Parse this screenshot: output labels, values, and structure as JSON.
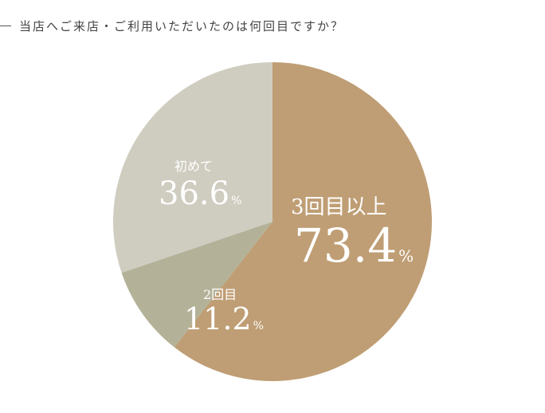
{
  "chart_data": {
    "type": "pie",
    "title": "当店へご来店・ご利用いただいたのは何回目ですか？",
    "slices": [
      {
        "label": "3回目以上",
        "value": 73.4,
        "display": "73.4",
        "color": "#bf9e75"
      },
      {
        "label": "2回目",
        "value": 11.2,
        "display": "11.2",
        "color": "#b3b298"
      },
      {
        "label": "初めて",
        "value": 36.6,
        "display": "36.6",
        "color": "#cfccc0"
      }
    ],
    "unit": "%"
  }
}
